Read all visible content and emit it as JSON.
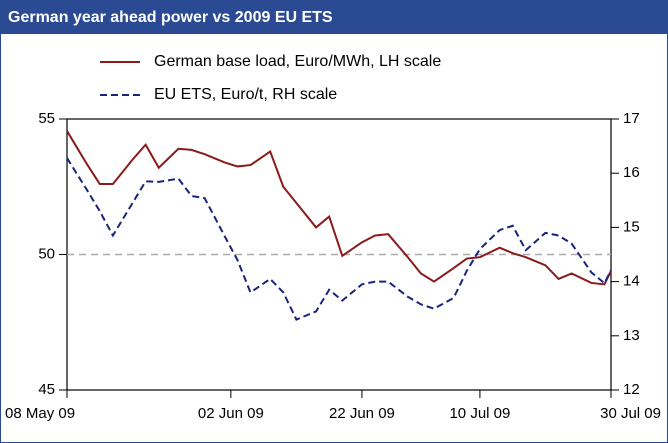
{
  "chart_data": {
    "type": "line",
    "title": "German year ahead power vs 2009 EU ETS",
    "x": [
      "2009-05-08",
      "2009-05-11",
      "2009-05-13",
      "2009-05-15",
      "2009-05-18",
      "2009-05-20",
      "2009-05-22",
      "2009-05-25",
      "2009-05-27",
      "2009-05-29",
      "2009-06-01",
      "2009-06-03",
      "2009-06-05",
      "2009-06-08",
      "2009-06-10",
      "2009-06-12",
      "2009-06-15",
      "2009-06-17",
      "2009-06-19",
      "2009-06-22",
      "2009-06-24",
      "2009-06-26",
      "2009-06-29",
      "2009-07-01",
      "2009-07-03",
      "2009-07-06",
      "2009-07-08",
      "2009-07-10",
      "2009-07-13",
      "2009-07-15",
      "2009-07-17",
      "2009-07-20",
      "2009-07-22",
      "2009-07-24",
      "2009-07-27",
      "2009-07-29",
      "2009-07-30"
    ],
    "series": [
      {
        "name": "German base load, Euro/MWh, LH scale",
        "color": "#8b1a1a",
        "line_style": "solid",
        "axis": "y",
        "values": [
          54.56,
          53.35,
          52.6,
          52.6,
          53.5,
          54.05,
          53.2,
          53.9,
          53.86,
          53.7,
          53.4,
          53.25,
          53.3,
          53.8,
          52.5,
          51.9,
          51.0,
          51.4,
          49.95,
          50.45,
          50.7,
          50.75,
          49.9,
          49.3,
          49.0,
          49.5,
          49.85,
          49.9,
          50.25,
          50.05,
          49.9,
          49.6,
          49.1,
          49.3,
          48.95,
          48.9,
          49.4
        ]
      },
      {
        "name": "EU ETS, Euro/t, RH scale",
        "color": "#1a237e",
        "line_style": "dashed",
        "axis": "y2",
        "values": [
          16.28,
          15.7,
          15.3,
          14.85,
          15.45,
          15.85,
          15.84,
          15.9,
          15.58,
          15.54,
          14.85,
          14.4,
          13.8,
          14.05,
          13.8,
          13.3,
          13.45,
          13.85,
          13.65,
          13.95,
          14.0,
          14.0,
          13.72,
          13.58,
          13.5,
          13.7,
          14.2,
          14.6,
          14.95,
          15.03,
          14.58,
          14.9,
          14.85,
          14.7,
          14.17,
          13.97,
          14.21
        ]
      }
    ],
    "xlim": [
      "2009-05-08",
      "2009-07-30"
    ],
    "xticks": [
      {
        "value": "2009-05-08",
        "label": "08 May 09"
      },
      {
        "value": "2009-06-02",
        "label": "02 Jun 09"
      },
      {
        "value": "2009-06-22",
        "label": "22 Jun 09"
      },
      {
        "value": "2009-07-10",
        "label": "10 Jul 09"
      },
      {
        "value": "2009-07-30",
        "label": "30 Jul 09"
      }
    ],
    "ylim": [
      45,
      55
    ],
    "yticks": [
      45,
      50,
      55
    ],
    "y2lim": [
      12,
      17
    ],
    "y2ticks": [
      12,
      13,
      14,
      15,
      16,
      17
    ],
    "reference_line": 50,
    "grid": false,
    "legend": "top"
  }
}
